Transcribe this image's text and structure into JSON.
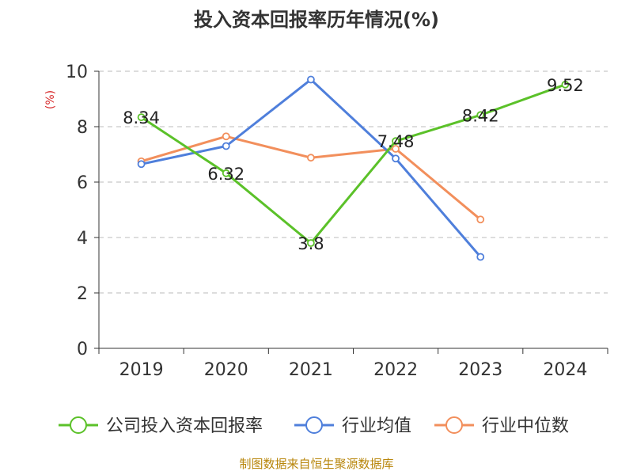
{
  "chart_data": {
    "type": "line",
    "title": "投入资本回报率历年情况(%)",
    "ylabel": "(%)",
    "categories": [
      "2019",
      "2020",
      "2021",
      "2022",
      "2023",
      "2024"
    ],
    "ylim": [
      0,
      10
    ],
    "yticks": [
      0,
      2,
      4,
      6,
      8,
      10
    ],
    "grid": true,
    "legend_position": "bottom",
    "series": [
      {
        "name": "公司投入资本回报率",
        "color": "#5bc129",
        "values": [
          8.34,
          6.32,
          3.8,
          7.48,
          8.42,
          9.52
        ],
        "labels": [
          "8.34",
          "6.32",
          "3.8",
          "7.48",
          "8.42",
          "9.52"
        ]
      },
      {
        "name": "行业均值",
        "color": "#4f7fdb",
        "values": [
          6.65,
          7.3,
          9.7,
          6.85,
          3.3,
          null
        ]
      },
      {
        "name": "行业中位数",
        "color": "#f28f5c",
        "values": [
          6.75,
          7.65,
          6.88,
          7.2,
          4.65,
          null
        ]
      }
    ],
    "source": "制图数据来自恒生聚源数据库"
  }
}
